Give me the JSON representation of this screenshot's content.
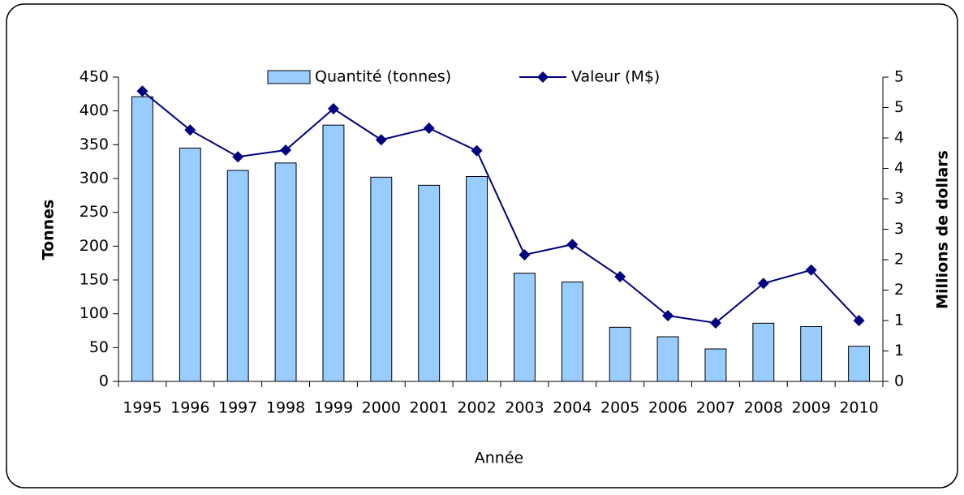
{
  "chart_data": {
    "type": "bar_line",
    "xlabel": "Année",
    "ylabel": "Tonnes",
    "y2label": "Millions de dollars",
    "categories": [
      "1995",
      "1996",
      "1997",
      "1998",
      "1999",
      "2000",
      "2001",
      "2002",
      "2003",
      "2004",
      "2005",
      "2006",
      "2007",
      "2008",
      "2009",
      "2010"
    ],
    "series": [
      {
        "name": "Quantité (tonnes)",
        "type": "bar",
        "color": "#99ccff",
        "values": [
          421,
          345,
          312,
          323,
          379,
          302,
          290,
          303,
          160,
          147,
          80,
          66,
          48,
          86,
          81,
          52
        ]
      },
      {
        "name": "Valeur (M$)",
        "type": "line",
        "axis": "y2",
        "color": "#000080",
        "values": [
          4.77,
          4.13,
          3.69,
          3.8,
          4.48,
          3.97,
          4.16,
          3.79,
          2.08,
          2.25,
          1.72,
          1.08,
          0.96,
          1.61,
          1.83,
          1.0
        ]
      }
    ],
    "ylim": [
      0,
      450
    ],
    "yticks": [
      0,
      50,
      100,
      150,
      200,
      250,
      300,
      350,
      400,
      450
    ],
    "y2lim": [
      0,
      5
    ],
    "y2ticks": [
      0,
      {
        "value": 0.5,
        "label": "1"
      },
      1,
      {
        "value": 1.5,
        "label": "2"
      },
      2,
      {
        "value": 2.5,
        "label": "3"
      },
      3,
      {
        "value": 3.5,
        "label": "4"
      },
      4,
      {
        "value": 4.5,
        "label": "5"
      },
      5
    ],
    "legend": "top"
  }
}
